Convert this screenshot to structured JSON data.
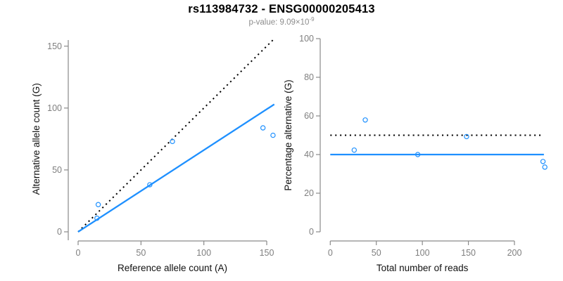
{
  "figure": {
    "title": "rs113984732 - ENSG00000205413",
    "subtitle_prefix": "p-value: 9.09×10",
    "subtitle_exponent": "-9"
  },
  "colors": {
    "accent_blue": "#1E90FF",
    "dotted_line": "#000000",
    "axis_line": "#8A8A8A",
    "tick_label": "#7F7F7F",
    "axis_title": "#111111",
    "title": "#000000",
    "subtitle": "#8C8C8C",
    "background": "#FFFFFF"
  },
  "chart_data": [
    {
      "type": "scatter",
      "name": "allele-counts",
      "xlabel": "Reference allele count (A)",
      "ylabel": "Alternative allele count (G)",
      "xlim": [
        0,
        156
      ],
      "ylim": [
        0,
        156
      ],
      "xticks": [
        0,
        50,
        100,
        150
      ],
      "yticks": [
        0,
        50,
        100,
        150
      ],
      "grid": false,
      "legend": "none",
      "points": [
        [
          15,
          11
        ],
        [
          16,
          22
        ],
        [
          57,
          38
        ],
        [
          75,
          73
        ],
        [
          147,
          84
        ],
        [
          155,
          78
        ]
      ],
      "lines": [
        {
          "name": "identity-line",
          "style": "dotted",
          "color": "#000000",
          "from": [
            0,
            0
          ],
          "to": [
            155,
            155
          ]
        },
        {
          "name": "regression-line",
          "style": "solid",
          "color": "#1E90FF",
          "from": [
            0,
            0
          ],
          "to": [
            156,
            103
          ]
        }
      ]
    },
    {
      "type": "scatter",
      "name": "percentage-vs-reads",
      "xlabel": "Total number of reads",
      "ylabel": "Percentage alternative (G)",
      "xlim": [
        0,
        233
      ],
      "ylim": [
        0,
        100
      ],
      "xticks": [
        0,
        50,
        100,
        150,
        200
      ],
      "yticks": [
        0,
        20,
        40,
        60,
        80,
        100
      ],
      "grid": false,
      "legend": "none",
      "points": [
        [
          26,
          42.3
        ],
        [
          38,
          57.9
        ],
        [
          95,
          40
        ],
        [
          148,
          49.3
        ],
        [
          231,
          36.4
        ],
        [
          233,
          33.5
        ]
      ],
      "lines": [
        {
          "name": "expected-50pct-line",
          "style": "dotted",
          "color": "#000000",
          "from": [
            0,
            50
          ],
          "to": [
            230,
            50
          ]
        },
        {
          "name": "fitted-40pct-line",
          "style": "solid",
          "color": "#1E90FF",
          "from": [
            0,
            40
          ],
          "to": [
            232,
            40
          ]
        }
      ]
    }
  ]
}
